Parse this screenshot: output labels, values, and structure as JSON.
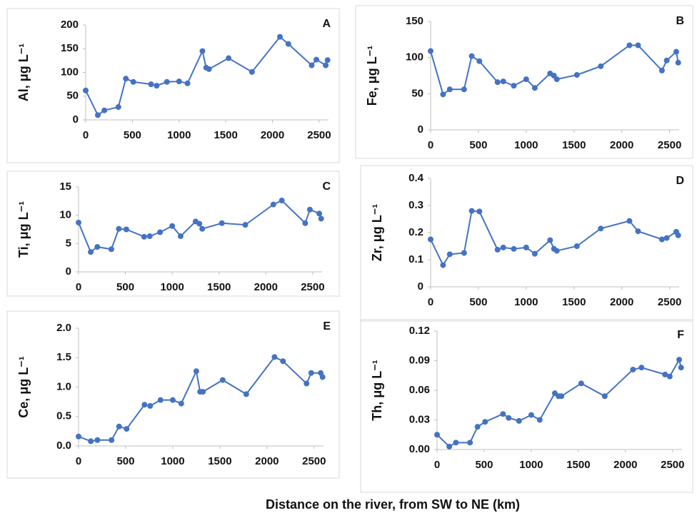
{
  "x_label": "Distance on the river, from SW to NE (km)",
  "chart_data": [
    {
      "type": "line",
      "title": "A",
      "ylabel": "Al, μg L⁻¹",
      "color": "#4472c4",
      "x": [
        0,
        130,
        200,
        350,
        430,
        510,
        700,
        760,
        870,
        1000,
        1090,
        1250,
        1290,
        1320,
        1530,
        1780,
        2080,
        2170,
        2420,
        2470,
        2570,
        2590
      ],
      "values": [
        62,
        10,
        20,
        27,
        87,
        80,
        75,
        72,
        80,
        81,
        77,
        145,
        110,
        107,
        130,
        101,
        175,
        160,
        115,
        127,
        115,
        126
      ],
      "xlim": [
        0,
        2600
      ],
      "ylim": [
        0,
        200
      ],
      "xticks": [
        0,
        500,
        1000,
        1500,
        2000,
        2500
      ],
      "yticks": [
        0,
        50,
        100,
        150,
        200
      ]
    },
    {
      "type": "line",
      "title": "B",
      "ylabel": "Fe, μg L⁻¹",
      "color": "#4472c4",
      "x": [
        0,
        130,
        200,
        350,
        430,
        510,
        700,
        760,
        870,
        1000,
        1090,
        1250,
        1290,
        1320,
        1530,
        1780,
        2080,
        2170,
        2420,
        2470,
        2570,
        2590
      ],
      "values": [
        109,
        49,
        56,
        56,
        102,
        95,
        66,
        67,
        61,
        70,
        58,
        78,
        75,
        70,
        76,
        88,
        117,
        117,
        82,
        96,
        108,
        93
      ],
      "xlim": [
        0,
        2600
      ],
      "ylim": [
        0,
        150
      ],
      "xticks": [
        0,
        500,
        1000,
        1500,
        2000,
        2500
      ],
      "yticks": [
        0,
        50,
        100,
        150
      ]
    },
    {
      "type": "line",
      "title": "C",
      "ylabel": "Ti, μg L⁻¹",
      "color": "#4472c4",
      "x": [
        0,
        130,
        200,
        350,
        430,
        510,
        700,
        760,
        870,
        1000,
        1090,
        1250,
        1290,
        1320,
        1530,
        1780,
        2080,
        2170,
        2420,
        2470,
        2570,
        2590
      ],
      "values": [
        8.7,
        3.5,
        4.4,
        4.0,
        7.6,
        7.5,
        6.2,
        6.3,
        7.0,
        8.1,
        6.3,
        8.9,
        8.5,
        7.6,
        8.6,
        8.3,
        11.9,
        12.6,
        8.6,
        11.0,
        10.3,
        9.4
      ],
      "xlim": [
        0,
        2600
      ],
      "ylim": [
        0,
        15
      ],
      "xticks": [
        0,
        500,
        1000,
        1500,
        2000,
        2500
      ],
      "yticks": [
        0,
        5,
        10,
        15
      ]
    },
    {
      "type": "line",
      "title": "D",
      "ylabel": "Zr, μg L⁻¹",
      "color": "#4472c4",
      "x": [
        0,
        130,
        200,
        350,
        430,
        510,
        700,
        760,
        870,
        1000,
        1090,
        1250,
        1290,
        1320,
        1530,
        1780,
        2080,
        2170,
        2420,
        2470,
        2570,
        2590
      ],
      "values": [
        0.175,
        0.08,
        0.12,
        0.125,
        0.28,
        0.278,
        0.137,
        0.145,
        0.14,
        0.145,
        0.122,
        0.172,
        0.14,
        0.133,
        0.15,
        0.215,
        0.243,
        0.205,
        0.175,
        0.18,
        0.203,
        0.19
      ],
      "xlim": [
        0,
        2600
      ],
      "ylim": [
        0,
        0.4
      ],
      "xticks": [
        0,
        500,
        1000,
        1500,
        2000,
        2500
      ],
      "yticks": [
        0,
        0.1,
        0.2,
        0.3,
        0.4
      ]
    },
    {
      "type": "line",
      "title": "E",
      "ylabel": "Ce, μg L⁻¹",
      "color": "#4472c4",
      "x": [
        0,
        130,
        200,
        350,
        430,
        510,
        700,
        760,
        870,
        1000,
        1090,
        1250,
        1290,
        1320,
        1530,
        1780,
        2080,
        2170,
        2420,
        2470,
        2570,
        2590
      ],
      "values": [
        0.16,
        0.08,
        0.1,
        0.1,
        0.33,
        0.29,
        0.7,
        0.68,
        0.78,
        0.78,
        0.72,
        1.27,
        0.92,
        0.92,
        1.12,
        0.88,
        1.51,
        1.44,
        1.06,
        1.24,
        1.24,
        1.17
      ],
      "xlim": [
        0,
        2600
      ],
      "ylim": [
        0,
        2
      ],
      "xticks": [
        0,
        500,
        1000,
        1500,
        2000,
        2500
      ],
      "yticks": [
        {
          "value": 0,
          "label": "0.0"
        },
        0.5,
        {
          "value": 1,
          "label": "1.0"
        },
        1.5,
        {
          "value": 2,
          "label": "2.0"
        }
      ]
    },
    {
      "type": "line",
      "title": "F",
      "ylabel": "Th, μg L⁻¹",
      "color": "#4472c4",
      "x": [
        0,
        130,
        200,
        350,
        430,
        510,
        700,
        760,
        870,
        1000,
        1090,
        1250,
        1290,
        1320,
        1530,
        1780,
        2080,
        2170,
        2420,
        2470,
        2570,
        2590
      ],
      "values": [
        0.015,
        0.003,
        0.007,
        0.007,
        0.023,
        0.028,
        0.036,
        0.032,
        0.029,
        0.035,
        0.03,
        0.057,
        0.054,
        0.054,
        0.067,
        0.054,
        0.081,
        0.083,
        0.076,
        0.074,
        0.091,
        0.083
      ],
      "xlim": [
        0,
        2600
      ],
      "ylim": [
        0,
        0.12
      ],
      "xticks": [
        0,
        500,
        1000,
        1500,
        2000,
        2500
      ],
      "yticks": [
        {
          "value": 0,
          "label": "0.00"
        },
        {
          "value": 0.03,
          "label": "0.03"
        },
        {
          "value": 0.06,
          "label": "0.06"
        },
        {
          "value": 0.09,
          "label": "0.09"
        },
        {
          "value": 0.12,
          "label": "0.12"
        }
      ]
    }
  ]
}
